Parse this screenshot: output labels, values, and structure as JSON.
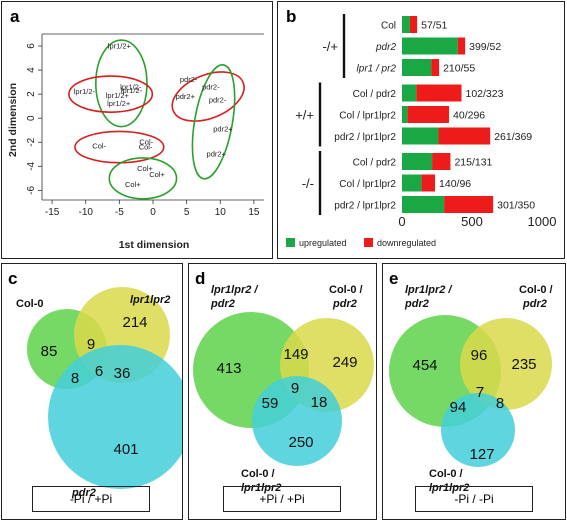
{
  "panel_a": {
    "label": "a",
    "chart_data": {
      "type": "scatter",
      "xlabel": "1st dimension",
      "ylabel": "2nd dimension",
      "xticks": [
        -15,
        -10,
        -5,
        0,
        5,
        10,
        15
      ],
      "yticks": [
        -6,
        -4,
        -2,
        0,
        2,
        4,
        6
      ],
      "xlim": [
        -16.5,
        16.5
      ],
      "ylim": [
        -6.8,
        7.0
      ],
      "points": [
        {
          "label": "lpr1/2+",
          "x": -5,
          "y": 5.8
        },
        {
          "label": "lpr1/2-",
          "x": -10.2,
          "y": 2.0
        },
        {
          "label": "lpr1/2-",
          "x": -3.3,
          "y": 2.4
        },
        {
          "label": "lpr1/2-",
          "x": -3.2,
          "y": 2.1
        },
        {
          "label": "lpr1/2+",
          "x": -5.3,
          "y": 1.7
        },
        {
          "label": "lpr1/2+",
          "x": -5.1,
          "y": 1.0
        },
        {
          "label": "pdr2-",
          "x": 5.3,
          "y": 3.0
        },
        {
          "label": "pdr2-",
          "x": 8.6,
          "y": 2.4
        },
        {
          "label": "pdr2+",
          "x": 4.8,
          "y": 1.6
        },
        {
          "label": "pdr2-",
          "x": 9.6,
          "y": 1.3
        },
        {
          "label": "pdr2+",
          "x": 10.4,
          "y": -1.1
        },
        {
          "label": "pdr2+",
          "x": 9.4,
          "y": -3.2
        },
        {
          "label": "Col-",
          "x": -8.0,
          "y": -2.5
        },
        {
          "label": "Col-",
          "x": -1.0,
          "y": -2.2
        },
        {
          "label": "Col-",
          "x": -1.1,
          "y": -2.6
        },
        {
          "label": "Col+",
          "x": -1.2,
          "y": -4.4
        },
        {
          "label": "Col+",
          "x": 0.6,
          "y": -4.9
        },
        {
          "label": "Col+",
          "x": -3.0,
          "y": -5.7
        }
      ],
      "ellipses": [
        {
          "cx": -4.7,
          "cy": 2.9,
          "rx": 3.8,
          "ry": 3.6,
          "color": "#2aa02a"
        },
        {
          "cx": -6.3,
          "cy": 2.0,
          "rx": 6.2,
          "ry": 1.5,
          "color": "#d42020"
        },
        {
          "cx": 8.2,
          "cy": 1.8,
          "rx": 5.6,
          "ry": 1.8,
          "color": "#d42020",
          "rot": -22
        },
        {
          "cx": 9.0,
          "cy": -0.3,
          "rx": 2.8,
          "ry": 4.8,
          "color": "#2aa02a",
          "rot": 10
        },
        {
          "cx": -5.0,
          "cy": -2.4,
          "rx": 6.6,
          "ry": 1.3,
          "color": "#d42020"
        },
        {
          "cx": -1.5,
          "cy": -5.0,
          "rx": 5.0,
          "ry": 1.7,
          "color": "#2aa02a"
        }
      ]
    }
  },
  "panel_b": {
    "label": "b",
    "chart_data": {
      "type": "bar",
      "orientation": "horizontal",
      "stacked": true,
      "xlim": [
        0,
        1000
      ],
      "xticks": [
        0,
        500,
        1000
      ],
      "categories": [
        "Col",
        "pdr2",
        "lpr1 / pr2",
        "Col / pdr2",
        "Col / lpr1lpr2",
        "pdr2 / lpr1lpr2",
        "Col / pdr2",
        "Col / lpr1lpr2",
        "pdr2 / lpr1lpr2"
      ],
      "italic": [
        false,
        true,
        true,
        false,
        false,
        false,
        false,
        false,
        false
      ],
      "series": [
        {
          "name": "upregulated",
          "color": "#1aa845",
          "values": [
            57,
            399,
            210,
            102,
            40,
            261,
            215,
            140,
            301
          ]
        },
        {
          "name": "downregulated",
          "color": "#ee1b1b",
          "values": [
            51,
            52,
            55,
            323,
            296,
            369,
            131,
            96,
            350
          ]
        }
      ],
      "value_labels": [
        "57/51",
        "399/52",
        "210/55",
        "102/323",
        "40/296",
        "261/369",
        "215/131",
        "140/96",
        "301/350"
      ],
      "groups": [
        {
          "label": "-/+",
          "rows": [
            0,
            2
          ]
        },
        {
          "label": "+/+",
          "rows": [
            3,
            5
          ]
        },
        {
          "label": "-/-",
          "rows": [
            6,
            8
          ]
        }
      ],
      "legend": "bottom"
    }
  },
  "panel_c": {
    "label": "c",
    "sets": [
      "Col-0",
      "lpr1lpr2",
      "pdr2"
    ],
    "regions": {
      "a": "85",
      "b": "214",
      "c": "401",
      "ab": "9",
      "ac": "8",
      "bc": "36",
      "abc": "6"
    },
    "condition": "-Pi / +Pi"
  },
  "panel_d": {
    "label": "d",
    "sets": [
      "lpr1lpr2 /",
      "pdr2",
      "Col-0 /",
      "pdr2",
      "Col-0 /",
      "lpr1lpr2"
    ],
    "regions": {
      "a": "413",
      "b": "249",
      "c": "250",
      "ab": "149",
      "ac": "59",
      "bc": "18",
      "abc": "9"
    },
    "condition": "+Pi / +Pi"
  },
  "panel_e": {
    "label": "e",
    "sets": [
      "lpr1lpr2 /",
      "pdr2",
      "Col-0 /",
      "pdr2",
      "Col-0 /",
      "lpr1lpr2"
    ],
    "regions": {
      "a": "454",
      "b": "235",
      "c": "127",
      "ab": "96",
      "ac": "94",
      "bc": "8",
      "abc": "7"
    },
    "condition": "-Pi / -Pi"
  }
}
